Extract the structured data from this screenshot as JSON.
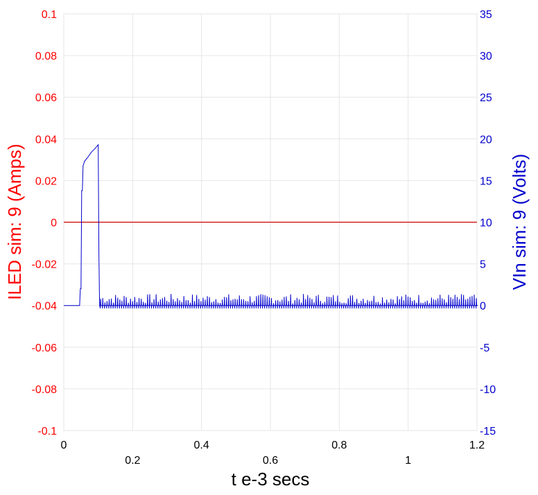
{
  "chart_data": {
    "type": "line",
    "xlabel": "t e-3 secs",
    "ylabel_left": "ILED sim:  9 (Amps)",
    "ylabel_right": "VIn sim:  9 (Volts)",
    "xlim": [
      0,
      1.2
    ],
    "ylim_left": [
      -0.1,
      0.1
    ],
    "ylim_right": [
      -15,
      35
    ],
    "grid": true,
    "x_ticks": [
      "0",
      "0.2",
      "0.4",
      "0.6",
      "0.8",
      "1",
      "1.2"
    ],
    "left_ticks": [
      "0.1",
      "0.08",
      "0.06",
      "0.04",
      "0.02",
      "0",
      "-0.02",
      "-0.04",
      "-0.06",
      "-0.08",
      "-0.1"
    ],
    "right_ticks": [
      "35",
      "30",
      "25",
      "20",
      "15",
      "10",
      "5",
      "0",
      "-5",
      "-10",
      "-15"
    ],
    "colors": {
      "left_axis": "#ff0000",
      "right_axis": "#0000cc",
      "series_iled": "#cc0000",
      "series_vin": "#0000cc",
      "grid": "#e6e6e6"
    },
    "series": [
      {
        "name": "ILED sim: 9",
        "axis": "left",
        "x": [
          0,
          1.2
        ],
        "y": [
          0,
          0
        ]
      },
      {
        "name": "VIn sim: 9",
        "axis": "right",
        "x": [
          0,
          0.046,
          0.048,
          0.05,
          0.052,
          0.054,
          0.056,
          0.058,
          0.06,
          0.07,
          0.08,
          0.09,
          0.1,
          0.102,
          0.104,
          0.106
        ],
        "y": [
          0,
          0,
          2,
          2,
          13.8,
          13.8,
          16.8,
          17,
          17.3,
          17.8,
          18.4,
          18.8,
          19.3,
          6,
          0,
          -0.3
        ],
        "switching": {
          "x_start": 0.106,
          "x_end": 1.2,
          "period": 0.0062,
          "baseline": 0,
          "low": -0.35,
          "peak_min": 0.25,
          "peak_max": 1.4
        }
      }
    ]
  }
}
